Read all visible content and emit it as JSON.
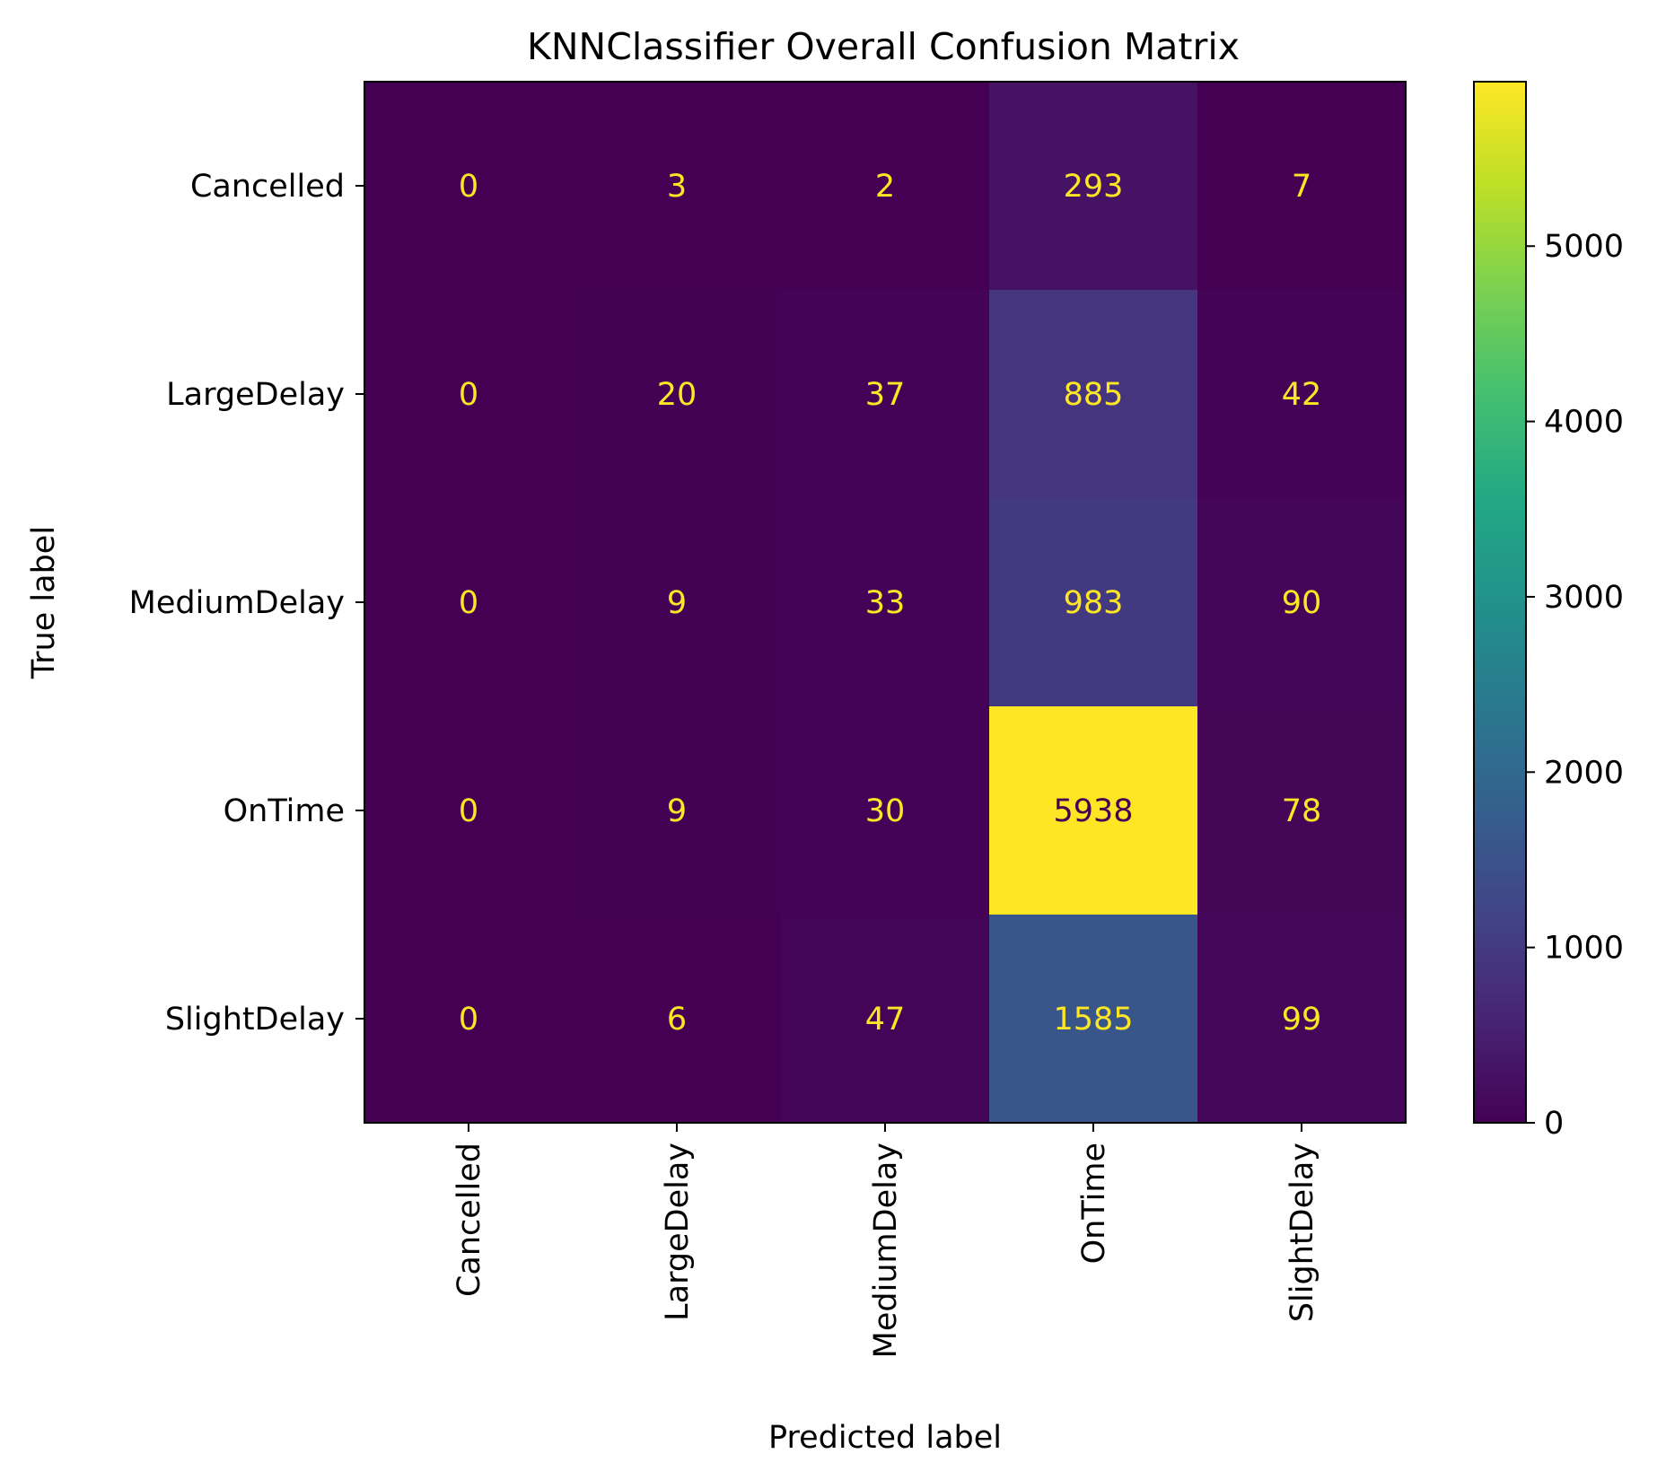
{
  "chart_data": {
    "type": "heatmap",
    "title": "KNNClassifier Overall Confusion Matrix",
    "xlabel": "Predicted label",
    "ylabel": "True label",
    "x_categories": [
      "Cancelled",
      "LargeDelay",
      "MediumDelay",
      "OnTime",
      "SlightDelay"
    ],
    "y_categories": [
      "Cancelled",
      "LargeDelay",
      "MediumDelay",
      "OnTime",
      "SlightDelay"
    ],
    "values": [
      [
        0,
        3,
        2,
        293,
        7
      ],
      [
        0,
        20,
        37,
        885,
        42
      ],
      [
        0,
        9,
        33,
        983,
        90
      ],
      [
        0,
        9,
        30,
        5938,
        78
      ],
      [
        0,
        6,
        47,
        1585,
        99
      ]
    ],
    "colormap": "viridis",
    "colorbar": {
      "range": [
        0,
        5938
      ],
      "ticks": [
        0,
        1000,
        2000,
        3000,
        4000,
        5000
      ],
      "tick_labels": [
        "0",
        "1000",
        "2000",
        "3000",
        "4000",
        "5000"
      ]
    },
    "annotation_colors": {
      "light": "#fde725",
      "dark": "#440154"
    },
    "grid": false,
    "legend": "colorbar-right"
  }
}
